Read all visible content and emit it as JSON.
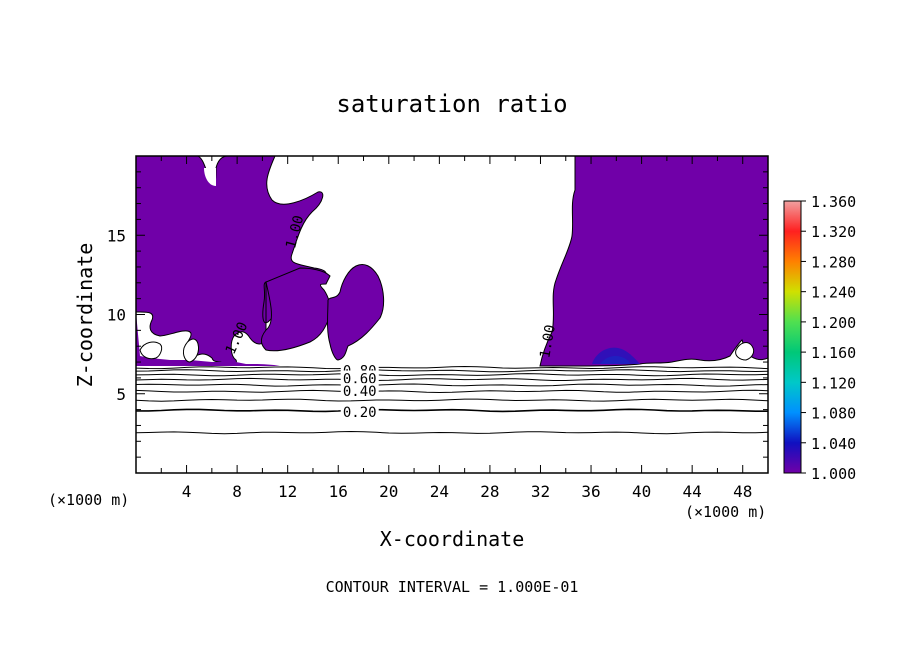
{
  "chart_data": {
    "type": "contour",
    "title": "saturation ratio",
    "xlabel": "X-coordinate",
    "ylabel": "Z-coordinate",
    "x_unit_left": "(×1000 m)",
    "x_unit_right": "(×1000 m)",
    "x_ticks": [
      "4",
      "8",
      "12",
      "16",
      "20",
      "24",
      "28",
      "32",
      "36",
      "40",
      "44",
      "48"
    ],
    "y_ticks": [
      "5",
      "10",
      "15"
    ],
    "xlim": [
      0,
      50
    ],
    "ylim": [
      0,
      20
    ],
    "footer": "CONTOUR INTERVAL = 1.000E-01",
    "colorbar": {
      "labels": [
        "1.360",
        "1.320",
        "1.280",
        "1.240",
        "1.200",
        "1.160",
        "1.120",
        "1.080",
        "1.040",
        "1.000"
      ],
      "colors": [
        "#f0a0a0",
        "#ff2020",
        "#ff8000",
        "#d0e000",
        "#50e050",
        "#00c878",
        "#00c8c8",
        "#0090ff",
        "#1010c0",
        "#7000a8"
      ],
      "min": 1.0,
      "max": 1.36
    },
    "fill_color": "#7000a8",
    "contour_labels": [
      {
        "text": "1.00",
        "x": 12.6,
        "y": 15.2,
        "rotate": -75
      },
      {
        "text": "1.00",
        "x": 8.0,
        "y": 8.5,
        "rotate": -65
      },
      {
        "text": "1.00",
        "x": 32.6,
        "y": 8.3,
        "rotate": -80
      },
      {
        "text": "0.80",
        "x": 17.7,
        "y": 6.4,
        "rotate": 0
      },
      {
        "text": "0.60",
        "x": 17.7,
        "y": 5.9,
        "rotate": 0
      },
      {
        "text": "0.40",
        "x": 17.7,
        "y": 5.1,
        "rotate": 0
      },
      {
        "text": "0.20",
        "x": 17.7,
        "y": 3.8,
        "rotate": 0
      }
    ],
    "contour_levels_z": [
      6.65,
      6.45,
      6.2,
      5.9,
      5.55,
      5.15,
      4.6,
      3.95,
      2.55
    ]
  }
}
